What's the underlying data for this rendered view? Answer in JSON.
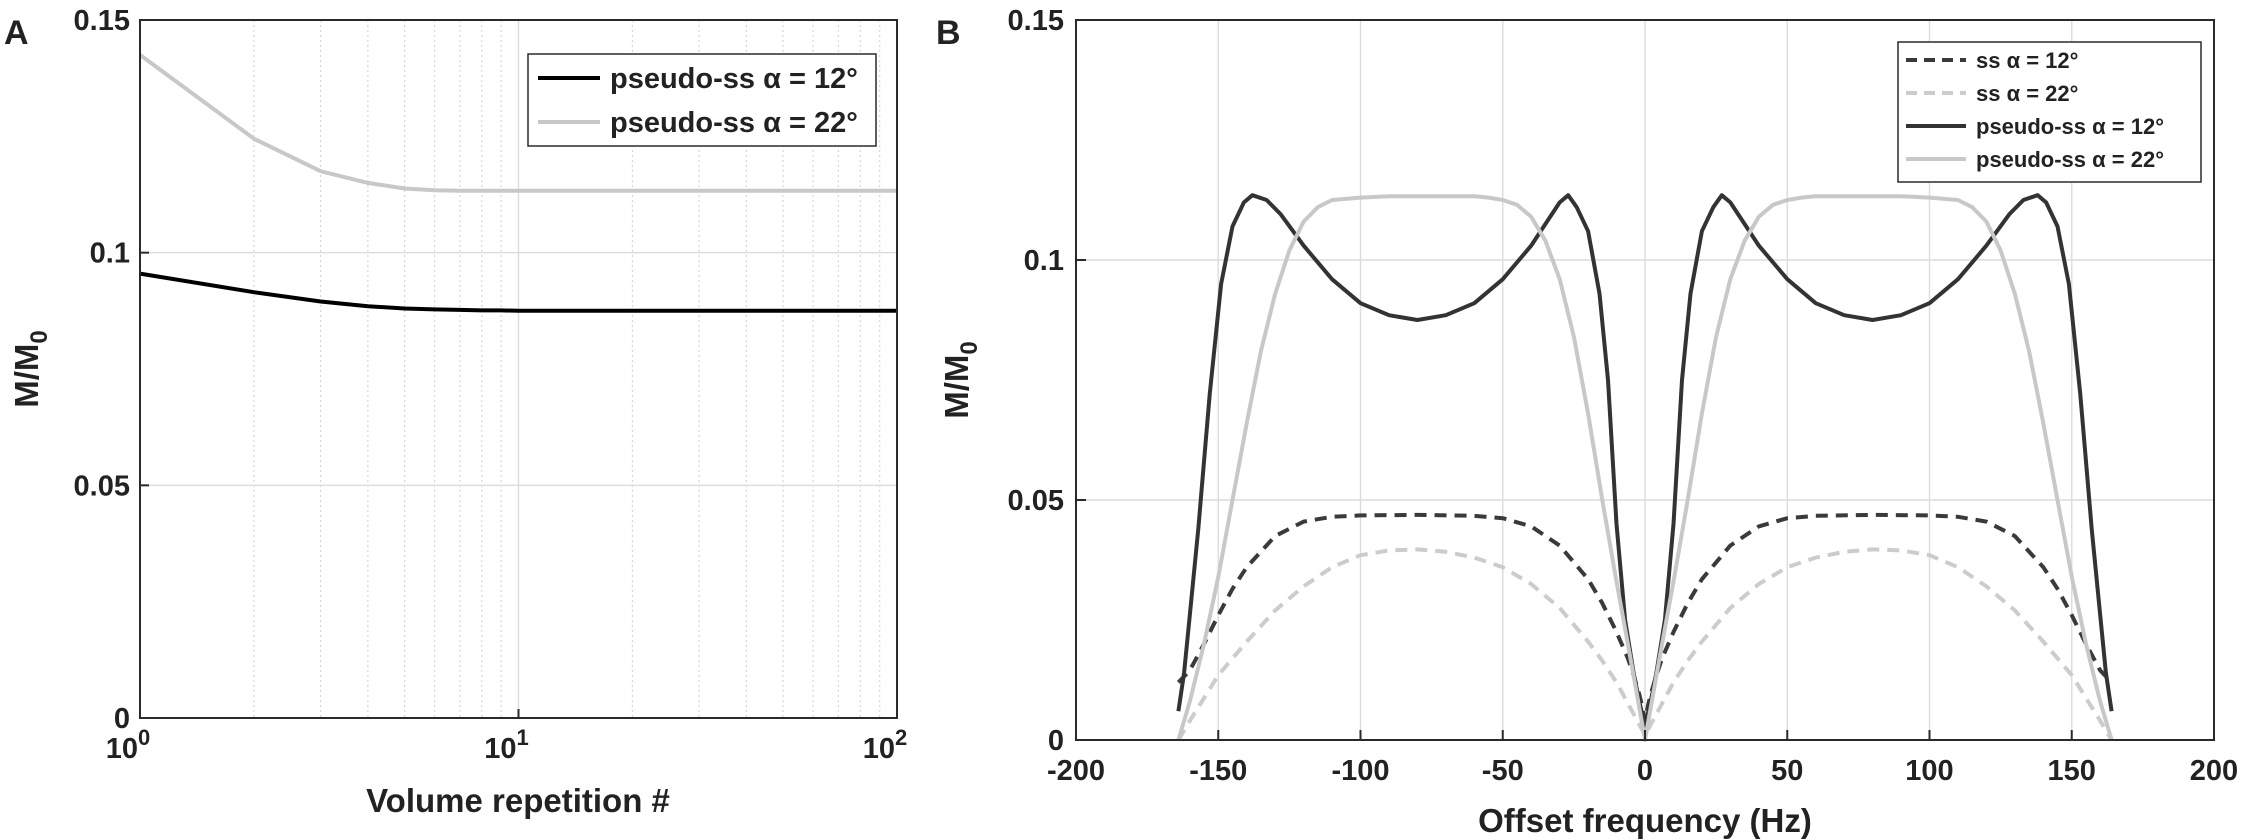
{
  "chart_data": [
    {
      "panel": "A",
      "type": "line",
      "xlabel": "Volume repetition #",
      "ylabel": "M/M",
      "ylabel_sub": "0",
      "xscale": "log",
      "xlim": [
        1,
        100
      ],
      "ylim": [
        0,
        0.15
      ],
      "xticks": [
        "10",
        "10",
        "10"
      ],
      "xtick_exponents": [
        "0",
        "1",
        "2"
      ],
      "yticks": [
        "0",
        "0.05",
        "0.1",
        "0.15"
      ],
      "grid": true,
      "legend": "top-right",
      "series": [
        {
          "name": "pseudo-ss α = 12°",
          "color": "#000000",
          "dashed": false,
          "x": [
            1,
            2,
            3,
            4,
            5,
            6,
            7,
            8,
            9,
            10,
            15,
            20,
            30,
            50,
            100
          ],
          "y": [
            0.0955,
            0.0915,
            0.0895,
            0.0885,
            0.088,
            0.0878,
            0.0877,
            0.0876,
            0.0876,
            0.0875,
            0.0875,
            0.0875,
            0.0875,
            0.0875,
            0.0875
          ]
        },
        {
          "name": "pseudo-ss α = 22°",
          "color": "#c8c8c8",
          "dashed": false,
          "x": [
            1,
            2,
            3,
            4,
            5,
            6,
            7,
            8,
            10,
            15,
            20,
            30,
            50,
            100
          ],
          "y": [
            0.1425,
            0.1245,
            0.1175,
            0.115,
            0.1138,
            0.1134,
            0.1133,
            0.1133,
            0.1133,
            0.1133,
            0.1133,
            0.1133,
            0.1133,
            0.1133
          ]
        }
      ]
    },
    {
      "panel": "B",
      "type": "line",
      "xlabel": "Offset frequency (Hz)",
      "ylabel": "M/M",
      "ylabel_sub": "0",
      "xlim": [
        -200,
        200
      ],
      "ylim": [
        0,
        0.15
      ],
      "xticks": [
        "-200",
        "-150",
        "-100",
        "-50",
        "0",
        "50",
        "100",
        "150",
        "200"
      ],
      "yticks": [
        "0",
        "0.05",
        "0.1",
        "0.15"
      ],
      "grid": true,
      "legend": "top-right",
      "series": [
        {
          "name": "ss α = 12°",
          "color": "#3a3a3a",
          "dashed": true,
          "x": [
            0,
            1,
            2,
            4,
            6,
            10,
            15,
            20,
            25,
            30,
            40,
            50,
            60,
            80,
            100,
            110,
            120,
            130,
            140,
            145,
            150,
            155,
            160,
            164
          ],
          "y": [
            0.004,
            0.007,
            0.0095,
            0.0135,
            0.017,
            0.0225,
            0.0285,
            0.0335,
            0.037,
            0.0405,
            0.0445,
            0.0462,
            0.0467,
            0.0469,
            0.0468,
            0.0465,
            0.0455,
            0.0425,
            0.036,
            0.0315,
            0.026,
            0.02,
            0.0145,
            0.012
          ]
        },
        {
          "name": "ss α = 22°",
          "color": "#cccccc",
          "dashed": true,
          "x": [
            0,
            5,
            10,
            15,
            20,
            25,
            30,
            40,
            50,
            60,
            70,
            80,
            90,
            100,
            110,
            120,
            130,
            140,
            150,
            160,
            164
          ],
          "y": [
            0.001,
            0.0065,
            0.012,
            0.0165,
            0.0205,
            0.024,
            0.0275,
            0.0325,
            0.036,
            0.038,
            0.0392,
            0.0397,
            0.0395,
            0.0385,
            0.036,
            0.032,
            0.027,
            0.0205,
            0.0135,
            0.004,
            0.0
          ]
        },
        {
          "name": "pseudo-ss α = 12°",
          "color": "#333333",
          "dashed": false,
          "x": [
            0,
            2,
            4,
            7,
            10,
            13,
            16,
            20,
            24,
            27,
            30,
            35,
            40,
            50,
            60,
            70,
            80,
            90,
            100,
            110,
            120,
            128,
            133,
            138,
            141,
            145,
            149,
            153,
            157,
            160,
            162,
            164
          ],
          "y": [
            0.003,
            0.008,
            0.014,
            0.025,
            0.045,
            0.075,
            0.093,
            0.106,
            0.111,
            0.1135,
            0.112,
            0.1075,
            0.103,
            0.096,
            0.091,
            0.0885,
            0.0875,
            0.0885,
            0.091,
            0.096,
            0.103,
            0.1095,
            0.1125,
            0.1135,
            0.112,
            0.107,
            0.095,
            0.072,
            0.044,
            0.026,
            0.014,
            0.006
          ]
        },
        {
          "name": "pseudo-ss α = 22°",
          "color": "#c8c8c8",
          "dashed": false,
          "x": [
            0,
            3,
            6,
            10,
            15,
            20,
            25,
            30,
            35,
            40,
            45,
            50,
            55,
            60,
            70,
            80,
            90,
            100,
            110,
            115,
            120,
            125,
            130,
            135,
            140,
            145,
            150,
            155,
            160,
            164
          ],
          "y": [
            0.0,
            0.01,
            0.02,
            0.033,
            0.05,
            0.068,
            0.084,
            0.096,
            0.104,
            0.109,
            0.1115,
            0.1125,
            0.113,
            0.1133,
            0.1133,
            0.1133,
            0.1133,
            0.113,
            0.1125,
            0.111,
            0.108,
            0.102,
            0.093,
            0.081,
            0.066,
            0.05,
            0.034,
            0.02,
            0.008,
            0.0
          ]
        }
      ]
    }
  ]
}
